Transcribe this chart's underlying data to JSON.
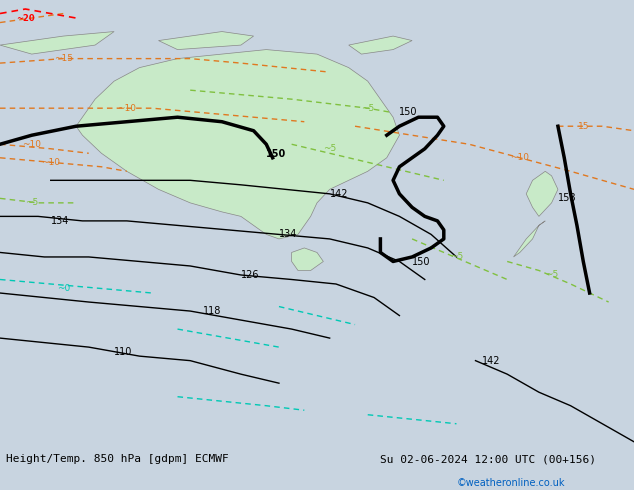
{
  "title_left": "Height/Temp. 850 hPa [gdpm] ECMWF",
  "title_right": "Su 02-06-2024 12:00 UTC (00+156)",
  "watermark": "©weatheronline.co.uk",
  "background_color": "#d0d8e8",
  "land_color": "#c8eac8",
  "ocean_color": "#d0d8e8",
  "fig_width": 6.34,
  "fig_height": 4.9,
  "dpi": 100
}
